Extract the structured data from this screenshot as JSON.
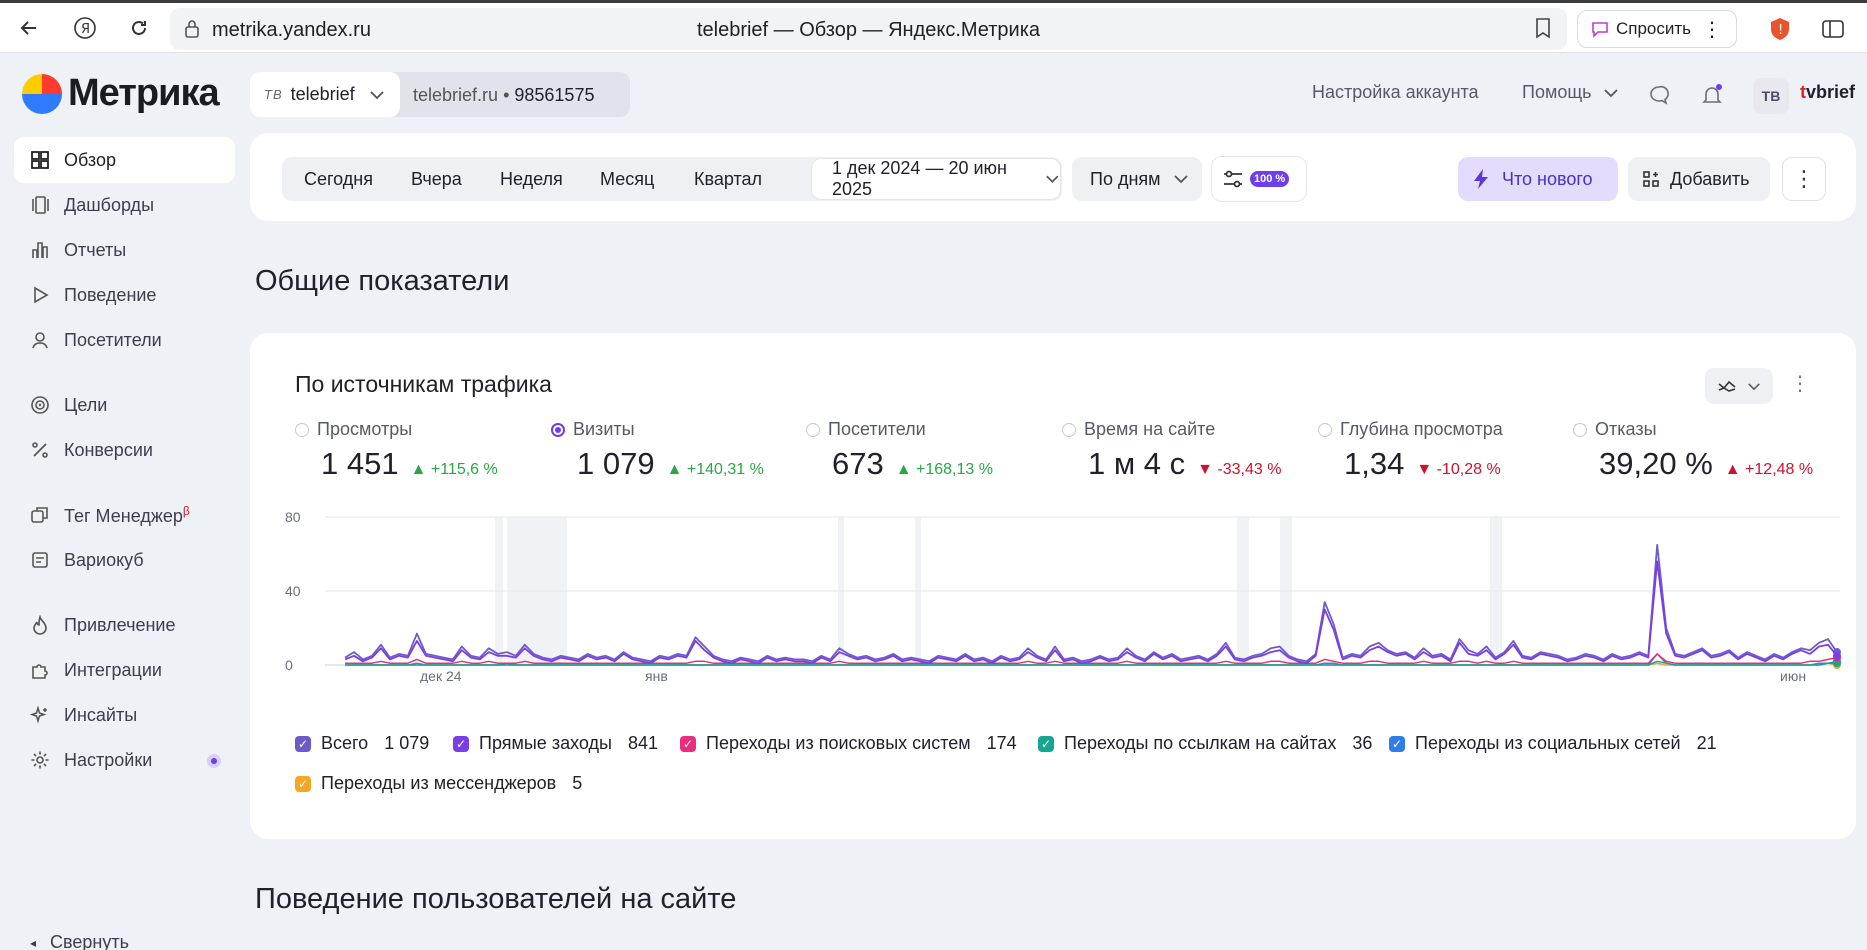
{
  "browser": {
    "url": "metrika.yandex.ru",
    "tab_title": "telebrief — Обзор — Яндекс.Метрика",
    "ask_label": "Спросить"
  },
  "header": {
    "logo_text": "Метрика",
    "counter_badge": "ТВ",
    "counter_name": "telebrief",
    "site": "telebrief.ru",
    "counter_id": "98561575",
    "account_settings": "Настройка аккаунта",
    "help": "Помощь",
    "avatar_text": "TB",
    "username_first": "t",
    "username_rest": "vbrief"
  },
  "sidebar": {
    "items": [
      {
        "label": "Обзор",
        "icon": "grid-icon"
      },
      {
        "label": "Дашборды",
        "icon": "dashboards-icon"
      },
      {
        "label": "Отчеты",
        "icon": "bar-chart-icon"
      },
      {
        "label": "Поведение",
        "icon": "play-icon"
      },
      {
        "label": "Посетители",
        "icon": "user-icon"
      },
      {
        "label": "Цели",
        "icon": "target-icon"
      },
      {
        "label": "Конверсии",
        "icon": "percent-icon"
      },
      {
        "label": "Тег Менеджер",
        "icon": "tag-manager-icon",
        "beta": "β"
      },
      {
        "label": "Вариокуб",
        "icon": "variocube-icon"
      },
      {
        "label": "Привлечение",
        "icon": "flame-icon"
      },
      {
        "label": "Интеграции",
        "icon": "puzzle-icon"
      },
      {
        "label": "Инсайты",
        "icon": "sparkle-icon"
      },
      {
        "label": "Настройки",
        "icon": "gear-icon"
      }
    ],
    "collapse": "Свернуть"
  },
  "toolbar": {
    "periods": [
      "Сегодня",
      "Вчера",
      "Неделя",
      "Месяц",
      "Квартал"
    ],
    "date_range": "1 дек 2024 — 20 июн 2025",
    "grouping": "По дням",
    "sample": "100 %",
    "whats_new": "Что нового",
    "add": "Добавить"
  },
  "sections": {
    "general": "Общие показатели",
    "behavior": "Поведение пользователей на сайте"
  },
  "traffic_card": {
    "title": "По источникам трафика",
    "metrics": [
      {
        "label": "Просмотры",
        "value": "1 451",
        "delta": "▲ +115,6 %",
        "selected": false
      },
      {
        "label": "Визиты",
        "value": "1 079",
        "delta": "▲ +140,31 %",
        "selected": true
      },
      {
        "label": "Посетители",
        "value": "673",
        "delta": "▲ +168,13 %",
        "selected": false
      },
      {
        "label": "Время на сайте",
        "value": "1 м 4 с",
        "delta": "▼ -33,43 %",
        "selected": false
      },
      {
        "label": "Глубина просмотра",
        "value": "1,34",
        "delta": "▼ -10,28 %",
        "selected": false
      },
      {
        "label": "Отказы",
        "value": "39,20 %",
        "delta": "▲ +12,48 %",
        "selected": false
      }
    ],
    "legend": [
      {
        "label": "Всего",
        "count": "1 079",
        "color": "#6e5bc9"
      },
      {
        "label": "Прямые заходы",
        "count": "841",
        "color": "#7a3ee6"
      },
      {
        "label": "Переходы из поисковых систем",
        "count": "174",
        "color": "#ea2e7d"
      },
      {
        "label": "Переходы по ссылкам на сайтах",
        "count": "36",
        "color": "#17a58d"
      },
      {
        "label": "Переходы из социальных сетей",
        "count": "21",
        "color": "#2f7ee8"
      },
      {
        "label": "Переходы из мессенджеров",
        "count": "5",
        "color": "#f5a623"
      }
    ]
  },
  "chart_data": {
    "type": "line",
    "ylim": [
      0,
      80
    ],
    "yticks": [
      "80",
      "40",
      "0"
    ],
    "xticks": [
      "дек 24",
      "янв",
      "июн"
    ],
    "grid": true,
    "series": [
      {
        "name": "Всего",
        "color": "#6e5bc9",
        "values": [
          4,
          7,
          3,
          5,
          11,
          4,
          6,
          5,
          17,
          6,
          5,
          4,
          3,
          10,
          5,
          4,
          9,
          6,
          7,
          5,
          11,
          6,
          4,
          3,
          5,
          4,
          3,
          6,
          4,
          5,
          3,
          7,
          4,
          3,
          2,
          5,
          4,
          6,
          5,
          15,
          10,
          5,
          3,
          2,
          4,
          3,
          2,
          5,
          3,
          4,
          3,
          3,
          2,
          5,
          3,
          9,
          6,
          4,
          5,
          3,
          4,
          6,
          3,
          4,
          3,
          2,
          5,
          4,
          3,
          6,
          3,
          4,
          2,
          5,
          3,
          4,
          9,
          5,
          3,
          10,
          3,
          4,
          2,
          3,
          5,
          3,
          4,
          9,
          5,
          3,
          7,
          4,
          6,
          3,
          4,
          5,
          3,
          6,
          12,
          4,
          3,
          5,
          6,
          9,
          10,
          5,
          3,
          2,
          6,
          34,
          22,
          4,
          6,
          5,
          10,
          12,
          8,
          6,
          7,
          4,
          9,
          5,
          6,
          3,
          14,
          8,
          6,
          10,
          4,
          7,
          13,
          5,
          4,
          7,
          6,
          5,
          3,
          4,
          6,
          5,
          3,
          6,
          4,
          5,
          7,
          5,
          65,
          20,
          6,
          5,
          7,
          9,
          5,
          6,
          8,
          4,
          7,
          5,
          3,
          6,
          4,
          7,
          9,
          8,
          12,
          14,
          7
        ]
      },
      {
        "name": "Прямые заходы",
        "color": "#7a3ee6",
        "values": [
          3,
          5,
          2,
          4,
          9,
          3,
          5,
          4,
          13,
          5,
          4,
          3,
          2,
          8,
          4,
          3,
          7,
          5,
          5,
          4,
          9,
          5,
          3,
          2,
          4,
          3,
          2,
          5,
          3,
          4,
          2,
          6,
          3,
          2,
          1,
          4,
          3,
          5,
          4,
          13,
          8,
          4,
          2,
          1,
          3,
          2,
          1,
          4,
          2,
          3,
          2,
          2,
          1,
          4,
          2,
          7,
          5,
          3,
          4,
          2,
          3,
          5,
          2,
          3,
          2,
          1,
          4,
          3,
          2,
          5,
          2,
          3,
          1,
          4,
          2,
          3,
          7,
          4,
          2,
          8,
          2,
          3,
          1,
          2,
          4,
          2,
          3,
          7,
          4,
          2,
          6,
          3,
          5,
          2,
          3,
          4,
          2,
          5,
          10,
          3,
          2,
          4,
          5,
          7,
          8,
          4,
          2,
          1,
          5,
          30,
          19,
          3,
          5,
          4,
          8,
          10,
          7,
          5,
          6,
          3,
          7,
          4,
          5,
          2,
          12,
          6,
          5,
          8,
          3,
          6,
          11,
          4,
          3,
          6,
          5,
          4,
          2,
          3,
          5,
          4,
          2,
          5,
          3,
          4,
          6,
          4,
          56,
          17,
          5,
          4,
          6,
          8,
          4,
          5,
          7,
          3,
          6,
          4,
          2,
          5,
          3,
          6,
          8,
          6,
          10,
          11,
          5
        ]
      },
      {
        "name": "Переходы из поисковых систем",
        "color": "#ea2e7d",
        "values": [
          1,
          1,
          1,
          1,
          2,
          1,
          1,
          1,
          3,
          1,
          1,
          1,
          1,
          2,
          1,
          1,
          2,
          1,
          1,
          1,
          2,
          1,
          1,
          1,
          1,
          1,
          1,
          1,
          1,
          1,
          1,
          1,
          1,
          1,
          1,
          1,
          1,
          1,
          1,
          2,
          2,
          1,
          1,
          1,
          1,
          1,
          1,
          1,
          1,
          1,
          1,
          1,
          1,
          1,
          1,
          2,
          1,
          1,
          1,
          1,
          1,
          1,
          1,
          1,
          1,
          1,
          1,
          1,
          1,
          1,
          1,
          1,
          1,
          1,
          1,
          1,
          2,
          1,
          1,
          2,
          1,
          1,
          1,
          1,
          1,
          1,
          1,
          2,
          1,
          1,
          1,
          1,
          1,
          1,
          1,
          1,
          1,
          1,
          2,
          1,
          1,
          1,
          1,
          2,
          2,
          1,
          1,
          1,
          1,
          3,
          2,
          1,
          1,
          1,
          2,
          2,
          1,
          1,
          1,
          1,
          2,
          1,
          1,
          1,
          2,
          2,
          1,
          2,
          1,
          1,
          2,
          1,
          1,
          1,
          1,
          1,
          1,
          1,
          1,
          1,
          1,
          1,
          1,
          1,
          1,
          1,
          6,
          2,
          1,
          1,
          1,
          1,
          1,
          1,
          1,
          1,
          1,
          1,
          1,
          1,
          1,
          1,
          1,
          2,
          2,
          3,
          4
        ]
      },
      {
        "name": "Переходы по ссылкам на сайтах",
        "color": "#17a58d",
        "values": [
          0,
          0,
          0,
          0,
          0,
          0,
          0,
          0,
          1,
          0,
          0,
          0,
          0,
          0,
          0,
          0,
          0,
          0,
          1,
          0,
          0,
          0,
          0,
          0,
          0,
          0,
          0,
          0,
          0,
          0,
          0,
          0,
          0,
          0,
          0,
          0,
          0,
          0,
          0,
          0,
          0,
          0,
          0,
          0,
          0,
          0,
          0,
          0,
          0,
          0,
          0,
          0,
          0,
          0,
          0,
          0,
          0,
          0,
          0,
          0,
          0,
          0,
          0,
          0,
          0,
          0,
          0,
          0,
          0,
          0,
          0,
          0,
          0,
          0,
          0,
          0,
          0,
          0,
          0,
          0,
          0,
          0,
          0,
          0,
          0,
          0,
          0,
          0,
          0,
          0,
          0,
          0,
          0,
          0,
          0,
          0,
          0,
          0,
          0,
          0,
          0,
          0,
          0,
          0,
          0,
          0,
          0,
          0,
          0,
          1,
          1,
          0,
          0,
          0,
          0,
          0,
          0,
          0,
          0,
          0,
          0,
          0,
          0,
          0,
          0,
          0,
          0,
          0,
          0,
          0,
          0,
          0,
          0,
          0,
          0,
          0,
          0,
          0,
          0,
          0,
          0,
          0,
          0,
          0,
          0,
          0,
          2,
          1,
          0,
          0,
          0,
          0,
          0,
          0,
          0,
          0,
          0,
          0,
          0,
          0,
          0,
          0,
          0,
          0,
          1,
          1,
          1
        ]
      },
      {
        "name": "Переходы из социальных сетей",
        "color": "#2f7ee8",
        "values": [
          0,
          0,
          0,
          0,
          0,
          0,
          0,
          0,
          0,
          0,
          0,
          0,
          0,
          0,
          0,
          0,
          0,
          0,
          0,
          0,
          0,
          0,
          0,
          0,
          0,
          0,
          0,
          0,
          0,
          0,
          0,
          0,
          0,
          0,
          0,
          0,
          0,
          0,
          0,
          0,
          0,
          0,
          0,
          0,
          0,
          0,
          0,
          0,
          0,
          0,
          0,
          0,
          0,
          0,
          0,
          0,
          0,
          0,
          0,
          0,
          0,
          0,
          0,
          0,
          0,
          0,
          0,
          0,
          0,
          0,
          0,
          0,
          0,
          0,
          0,
          0,
          0,
          0,
          0,
          0,
          0,
          0,
          0,
          0,
          0,
          0,
          0,
          0,
          0,
          0,
          0,
          0,
          0,
          0,
          0,
          0,
          0,
          0,
          0,
          0,
          0,
          0,
          0,
          0,
          0,
          0,
          0,
          0,
          0,
          0,
          0,
          0,
          0,
          0,
          0,
          0,
          0,
          0,
          0,
          0,
          0,
          0,
          0,
          0,
          0,
          0,
          0,
          0,
          0,
          0,
          0,
          0,
          0,
          0,
          0,
          0,
          0,
          0,
          0,
          0,
          0,
          0,
          0,
          0,
          0,
          0,
          6,
          1,
          0,
          0,
          0,
          0,
          0,
          0,
          0,
          0,
          0,
          0,
          0,
          0,
          0,
          0,
          0,
          0,
          0,
          1,
          2
        ]
      },
      {
        "name": "Переходы из мессенджеров",
        "color": "#f5a623",
        "values": [
          0,
          0,
          0,
          0,
          0,
          0,
          0,
          0,
          0,
          0,
          0,
          0,
          0,
          0,
          0,
          0,
          0,
          0,
          0,
          0,
          0,
          0,
          0,
          0,
          0,
          0,
          0,
          0,
          0,
          0,
          0,
          0,
          0,
          0,
          0,
          0,
          0,
          0,
          0,
          0,
          0,
          0,
          0,
          0,
          0,
          0,
          0,
          0,
          0,
          0,
          0,
          0,
          0,
          0,
          0,
          0,
          0,
          0,
          0,
          0,
          0,
          0,
          0,
          0,
          0,
          0,
          0,
          0,
          0,
          0,
          0,
          0,
          0,
          0,
          0,
          0,
          0,
          0,
          0,
          0,
          0,
          0,
          0,
          0,
          0,
          0,
          0,
          0,
          0,
          0,
          0,
          0,
          0,
          0,
          0,
          0,
          0,
          0,
          0,
          0,
          0,
          0,
          0,
          0,
          0,
          0,
          0,
          0,
          0,
          0,
          0,
          0,
          0,
          0,
          0,
          0,
          0,
          0,
          0,
          0,
          0,
          0,
          0,
          0,
          0,
          0,
          0,
          0,
          0,
          0,
          0,
          0,
          0,
          0,
          0,
          0,
          0,
          0,
          0,
          0,
          0,
          0,
          0,
          0,
          0,
          0,
          1,
          0,
          0,
          0,
          0,
          0,
          0,
          0,
          0,
          0,
          0,
          0,
          0,
          0,
          0,
          0,
          0,
          0,
          0,
          1,
          0
        ]
      }
    ]
  }
}
